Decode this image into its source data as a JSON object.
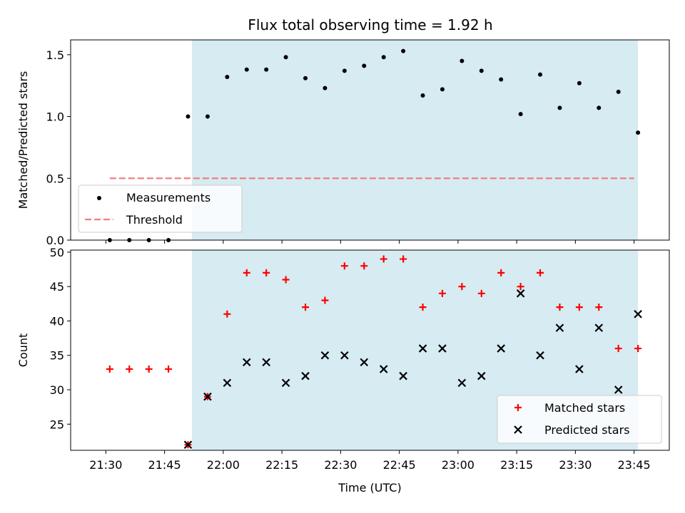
{
  "title": "Flux total observing time = 1.92 h",
  "colors": {
    "shade": "#add8e6",
    "measurements": "#000000",
    "threshold": "#f08080",
    "matched": "#ff0000",
    "predicted": "#000000"
  },
  "chart_data": [
    {
      "type": "scatter",
      "ylabel": "Matched/Predicted stars",
      "ylim": [
        0,
        1.62
      ],
      "yticks": [
        0.0,
        0.5,
        1.0,
        1.5
      ],
      "ytick_labels": [
        "0.0",
        "0.5",
        "1.0",
        "1.5"
      ],
      "xlim": [
        "21:21",
        "23:54"
      ],
      "shaded_range": [
        "21:52",
        "23:46"
      ],
      "legend_position": "lower-left",
      "series": [
        {
          "name": "Measurements",
          "marker": "dot",
          "x": [
            "21:31",
            "21:36",
            "21:41",
            "21:46",
            "21:51",
            "21:56",
            "22:01",
            "22:06",
            "22:11",
            "22:16",
            "22:21",
            "22:26",
            "22:31",
            "22:36",
            "22:41",
            "22:46",
            "22:51",
            "22:56",
            "23:01",
            "23:06",
            "23:11",
            "23:16",
            "23:21",
            "23:26",
            "23:31",
            "23:36",
            "23:41",
            "23:46"
          ],
          "y": [
            0,
            0,
            0,
            0,
            1.0,
            1.0,
            1.32,
            1.38,
            1.38,
            1.48,
            1.31,
            1.23,
            1.37,
            1.41,
            1.48,
            1.53,
            1.17,
            1.22,
            1.45,
            1.37,
            1.3,
            1.02,
            1.34,
            1.07,
            1.27,
            1.07,
            1.2,
            0.87
          ]
        },
        {
          "name": "Threshold",
          "marker": "dashed-line",
          "x": [
            "21:31",
            "23:45"
          ],
          "y": [
            0.5,
            0.5
          ]
        }
      ]
    },
    {
      "type": "scatter",
      "xlabel": "Time (UTC)",
      "ylabel": "Count",
      "ylim": [
        21.2,
        50.3
      ],
      "yticks": [
        25,
        30,
        35,
        40,
        45,
        50
      ],
      "ytick_labels": [
        "25",
        "30",
        "35",
        "40",
        "45",
        "50"
      ],
      "xlim": [
        "21:21",
        "23:54"
      ],
      "xticks": [
        "21:30",
        "21:45",
        "22:00",
        "22:15",
        "22:30",
        "22:45",
        "23:00",
        "23:15",
        "23:30",
        "23:45"
      ],
      "shaded_range": [
        "21:52",
        "23:46"
      ],
      "legend_position": "lower-right",
      "series": [
        {
          "name": "Matched stars",
          "marker": "plus",
          "x": [
            "21:31",
            "21:36",
            "21:41",
            "21:46",
            "21:51",
            "21:56",
            "22:01",
            "22:06",
            "22:11",
            "22:16",
            "22:21",
            "22:26",
            "22:31",
            "22:36",
            "22:41",
            "22:46",
            "22:51",
            "22:56",
            "23:01",
            "23:06",
            "23:11",
            "23:16",
            "23:21",
            "23:26",
            "23:31",
            "23:36",
            "23:41",
            "23:46"
          ],
          "y": [
            33,
            33,
            33,
            33,
            22,
            29,
            41,
            47,
            47,
            46,
            42,
            43,
            48,
            48,
            49,
            49,
            42,
            44,
            45,
            44,
            47,
            45,
            47,
            42,
            42,
            42,
            36,
            36
          ]
        },
        {
          "name": "Predicted stars",
          "marker": "x",
          "x": [
            "21:51",
            "21:56",
            "22:01",
            "22:06",
            "22:11",
            "22:16",
            "22:21",
            "22:26",
            "22:31",
            "22:36",
            "22:41",
            "22:46",
            "22:51",
            "22:56",
            "23:01",
            "23:06",
            "23:11",
            "23:16",
            "23:21",
            "23:26",
            "23:31",
            "23:36",
            "23:41",
            "23:46"
          ],
          "y": [
            22,
            29,
            31,
            34,
            34,
            31,
            32,
            35,
            35,
            34,
            33,
            32,
            36,
            36,
            31,
            32,
            36,
            44,
            35,
            39,
            33,
            39,
            30,
            41
          ]
        }
      ]
    }
  ]
}
